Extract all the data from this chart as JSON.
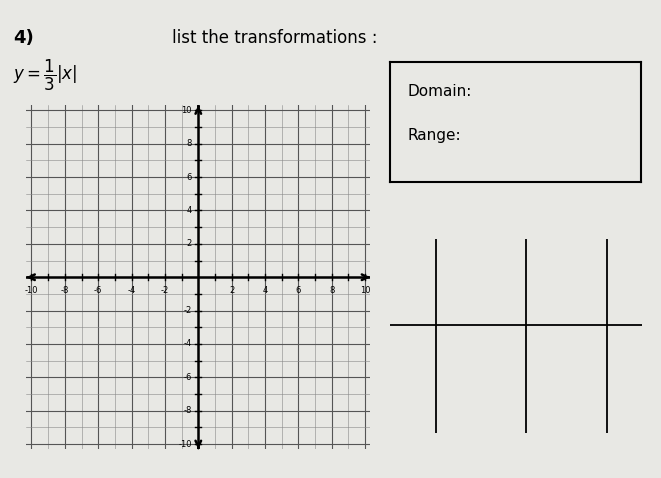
{
  "title_number": "4)",
  "prompt": "list the transformations :",
  "domain_label": "Domain:",
  "range_label": "Range:",
  "bg_color": "#e8e8e4",
  "x_min": -10,
  "x_max": 10,
  "y_min": -10,
  "y_max": 10,
  "x_ticks": [
    -10,
    -8,
    -6,
    -4,
    -2,
    2,
    4,
    6,
    8,
    10
  ],
  "y_ticks": [
    -10,
    -8,
    -6,
    -4,
    -2,
    2,
    4,
    6,
    8,
    10
  ]
}
